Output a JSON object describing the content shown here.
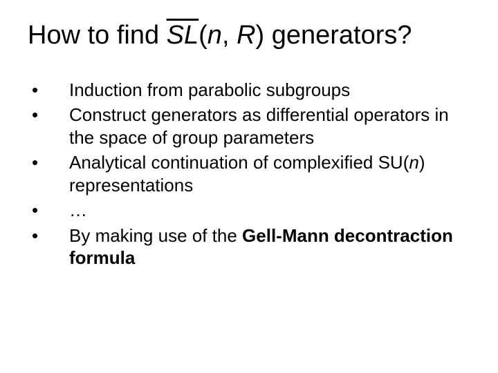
{
  "slide": {
    "title": {
      "prefix": "How to find ",
      "sl": "SL",
      "open": "(",
      "n": "n",
      "comma": ", ",
      "r": "R",
      "close": ")",
      "suffix": " generators?"
    },
    "bullets": {
      "b0": {
        "mark": "•",
        "text": "Induction from parabolic subgroups"
      },
      "b1": {
        "mark": "•",
        "text": "Construct generators as differential operators in the space of group parameters"
      },
      "b2": {
        "mark": "•",
        "pre": "Analytical continuation of complexified SU(",
        "n": "n",
        "post": ") representations"
      },
      "b3": {
        "mark": "•",
        "text": "…"
      },
      "b4": {
        "mark": "•",
        "pre": "By making use of the ",
        "bold": "Gell-Mann decontraction formula"
      }
    }
  },
  "style": {
    "title_fontsize": 38,
    "body_fontsize": 26,
    "text_color": "#000000",
    "background_color": "#ffffff"
  }
}
